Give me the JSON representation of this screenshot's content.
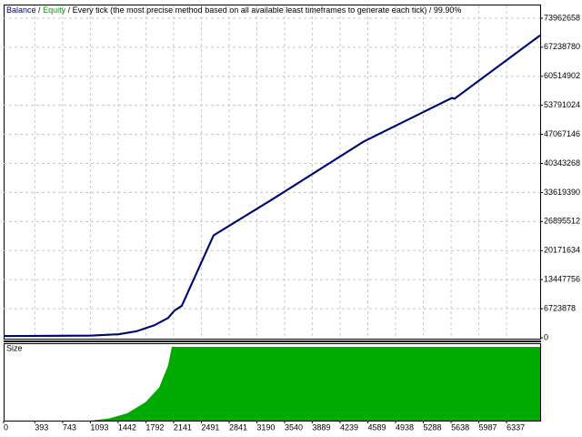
{
  "chart_data": [
    {
      "type": "line",
      "mode": "Every tick (the most precise method based on all available least timeframes to generate each tick)",
      "separator": "/",
      "quality": "99.90%",
      "x": [
        0,
        1100,
        1443,
        1672,
        1901,
        2073,
        2153,
        2245,
        2646,
        3391,
        4536,
        5647,
        5680,
        6760
      ],
      "series": [
        {
          "name": "Balance",
          "color": "#000080",
          "values": [
            400000,
            500000,
            800000,
            1500000,
            2900000,
            4600000,
            6300000,
            7400000,
            23700000,
            32100000,
            45400000,
            55500000,
            55300000,
            70000000
          ]
        },
        {
          "name": "Equity",
          "color": "#00a000",
          "values": [
            400000,
            500000,
            800000,
            1500000,
            2900000,
            4600000,
            6300000,
            7400000,
            23700000,
            32100000,
            45400000,
            55500000,
            55300000,
            70000000
          ]
        }
      ],
      "xlim": [
        0,
        6760
      ],
      "ylim": [
        0,
        76900000
      ],
      "yticks": [
        0,
        6723878,
        13447756,
        20171634,
        26895512,
        33619390,
        40343268,
        47067146,
        53791024,
        60514902,
        67238780,
        73962658
      ],
      "grid": true
    },
    {
      "type": "area",
      "title": "Size",
      "color": "#00aa00",
      "x": [
        0,
        1100,
        1329,
        1558,
        1787,
        1959,
        2073,
        2119,
        6760
      ],
      "values": [
        0,
        0,
        0.03,
        0.1,
        0.25,
        0.45,
        0.75,
        1,
        1
      ],
      "xlim": [
        0,
        6760
      ],
      "ylim": [
        0,
        1
      ],
      "xticks": [
        0,
        393,
        743,
        1093,
        1442,
        1792,
        2141,
        2491,
        2841,
        3190,
        3540,
        3889,
        4239,
        4589,
        4938,
        5288,
        5638,
        5987,
        6337
      ],
      "grid": true
    }
  ]
}
